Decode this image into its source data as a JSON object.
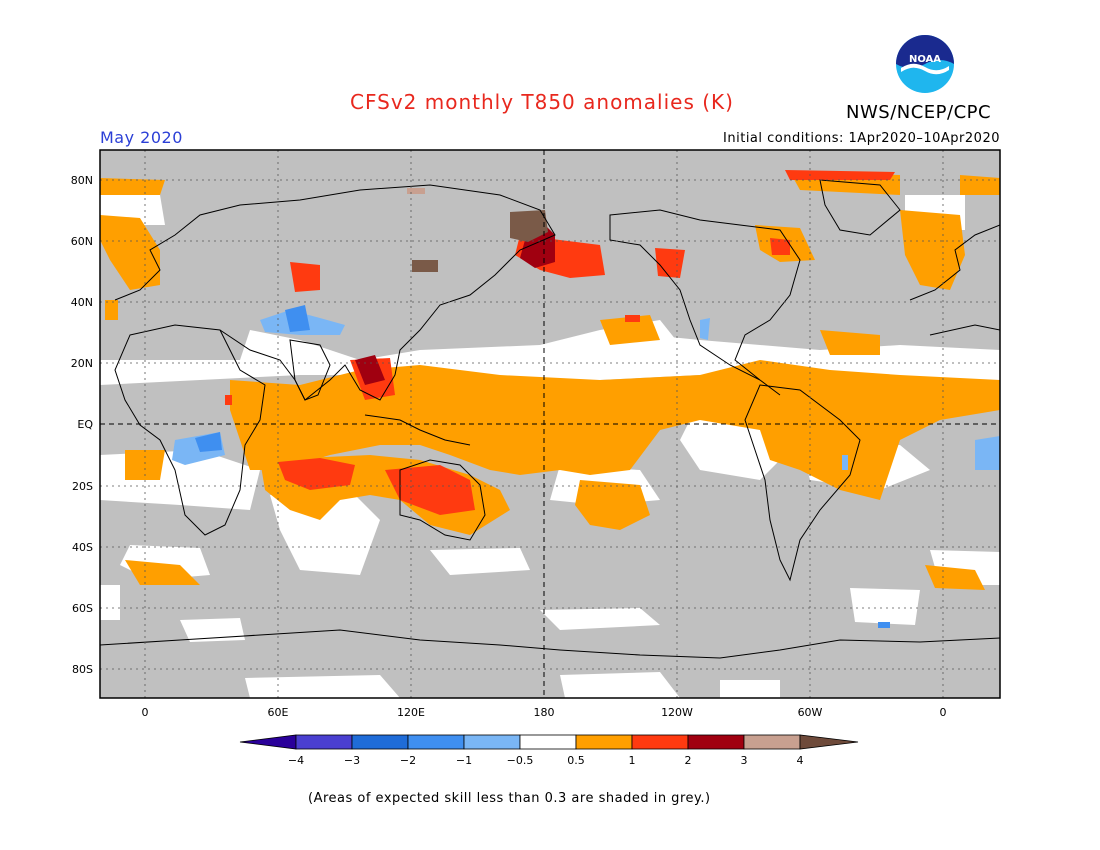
{
  "header": {
    "title": "CFSv2 monthly T850 anomalies (K)",
    "agency": "NWS/NCEP/CPC",
    "month": "May 2020",
    "initial_conditions": "Initial conditions: 1Apr2020–10Apr2020",
    "logo": {
      "text": "NOAA",
      "icon": "noaa-logo-icon"
    }
  },
  "axes": {
    "lat_ticks": [
      "80N",
      "60N",
      "40N",
      "20N",
      "EQ",
      "20S",
      "40S",
      "60S",
      "80S"
    ],
    "lon_ticks": [
      "0",
      "60E",
      "120E",
      "180",
      "120W",
      "60W",
      "0"
    ]
  },
  "legend": {
    "labels": [
      "−4",
      "−3",
      "−2",
      "−1",
      "−0.5",
      "0.5",
      "1",
      "2",
      "3",
      "4"
    ],
    "colors": [
      "#2a009a",
      "#4a3fd0",
      "#1f6cd8",
      "#3f8ff0",
      "#7ab6f5",
      "#ffffff",
      "#ff9f00",
      "#ff3a10",
      "#a00010",
      "#c8a090",
      "#6e4a3a"
    ]
  },
  "footnote": "(Areas of expected skill less than 0.3 are shaded in grey.)",
  "colors": {
    "skill_grey": "#c0c0c0",
    "title_red": "#e8281e",
    "month_blue": "#2b3fd6"
  }
}
